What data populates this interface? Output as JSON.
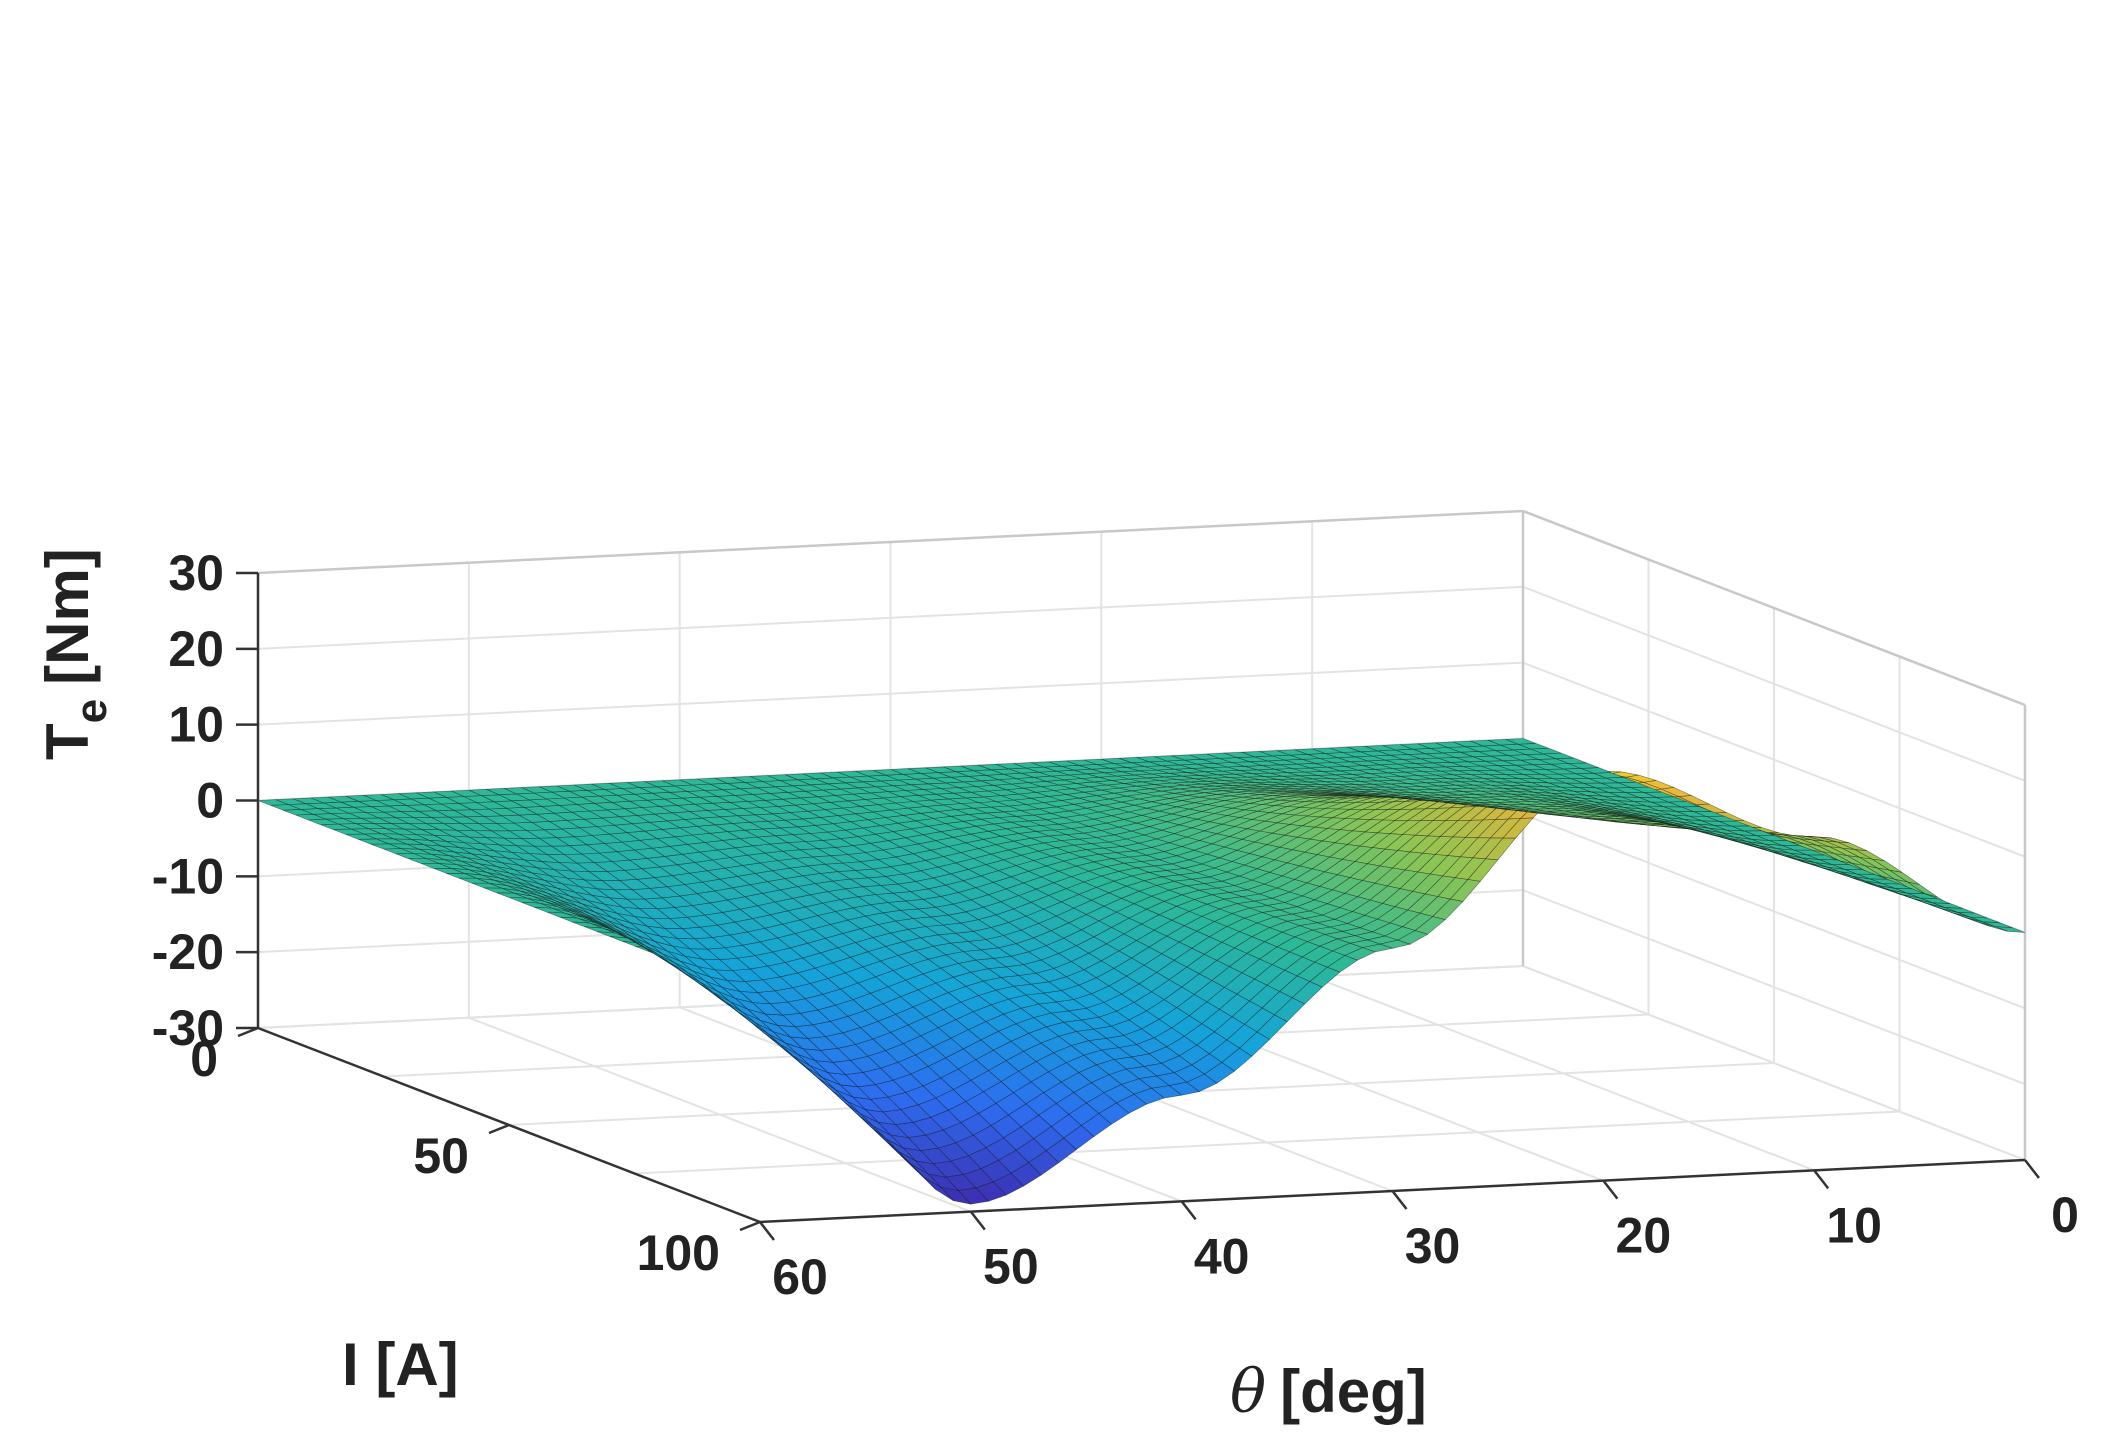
{
  "chart_data": {
    "type": "surface3d",
    "title": "",
    "z_axis": {
      "label_main": "T",
      "label_sub": "e",
      "label_unit": "[Nm]",
      "range": [
        -30,
        30
      ],
      "ticks": [
        30,
        20,
        10,
        0,
        -10,
        -20,
        -30
      ]
    },
    "i_axis": {
      "label": "I [A]",
      "range": [
        0,
        100
      ],
      "ticks": [
        0,
        50,
        100
      ]
    },
    "theta_axis": {
      "label_symbol": "θ",
      "label_unit": "[deg]",
      "range": [
        0,
        60
      ],
      "ticks": [
        60,
        50,
        40,
        30,
        20,
        10,
        0
      ]
    },
    "grid": true,
    "colormap": "parula",
    "colormap_stops": [
      "#3e26a8",
      "#2e6cf0",
      "#14a4d9",
      "#2db897",
      "#8ec553",
      "#e7b53a",
      "#f9fb15"
    ],
    "mesh_color": "#111111",
    "surface_samples": {
      "theta": [
        0,
        10,
        20,
        30,
        40,
        50,
        60
      ],
      "current": [
        0,
        50,
        100
      ],
      "torque_at_100A": [
        0,
        14,
        24,
        2,
        -16,
        -29,
        0
      ],
      "torque_at_50A": [
        0,
        4,
        7,
        0.5,
        -5,
        -8,
        0
      ],
      "torque_at_0A": [
        0,
        0,
        0,
        0,
        0,
        0,
        0
      ]
    }
  }
}
